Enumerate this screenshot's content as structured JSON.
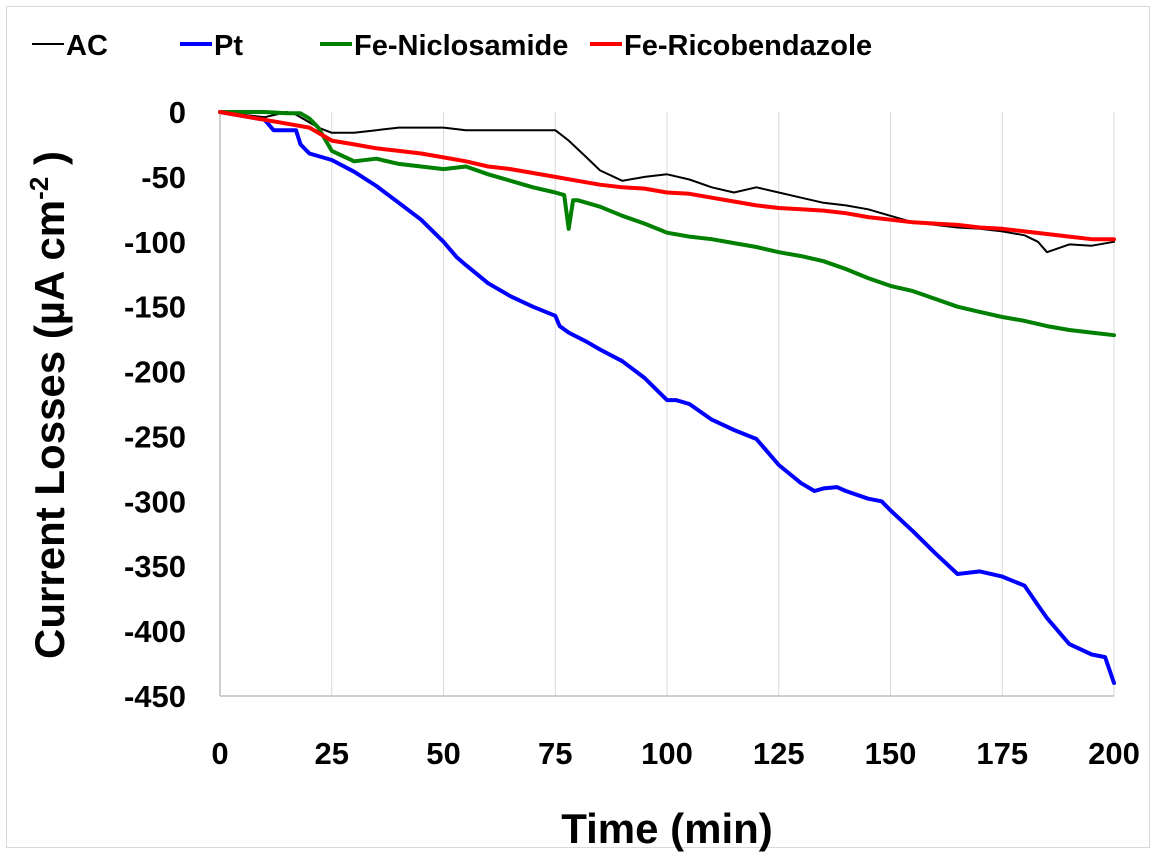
{
  "chart_data": {
    "type": "line",
    "xlabel": "Time (min)",
    "ylabel": "Current Losses (µA cm",
    "ylabel_sup": "-2",
    "ylabel_close": " )",
    "xlim": [
      0,
      200
    ],
    "ylim": [
      -450,
      0
    ],
    "xticks": [
      0,
      25,
      50,
      75,
      100,
      125,
      150,
      175,
      200
    ],
    "yticks": [
      0,
      -50,
      -100,
      -150,
      -200,
      -250,
      -300,
      -350,
      -400,
      -450
    ],
    "grid": "vertical",
    "legend": "top",
    "series": [
      {
        "name": "AC",
        "color": "#000000",
        "width": 2,
        "x": [
          0,
          5,
          10,
          15,
          17,
          19,
          22,
          25,
          30,
          35,
          40,
          45,
          50,
          55,
          60,
          65,
          70,
          75,
          78,
          82,
          85,
          90,
          95,
          100,
          105,
          110,
          115,
          120,
          125,
          130,
          135,
          140,
          145,
          150,
          155,
          160,
          165,
          170,
          175,
          180,
          183,
          185,
          190,
          195,
          200
        ],
        "y": [
          0,
          -2,
          -4,
          0,
          -2,
          -6,
          -12,
          -16,
          -16,
          -14,
          -12,
          -12,
          -12,
          -14,
          -14,
          -14,
          -14,
          -14,
          -22,
          -35,
          -45,
          -53,
          -50,
          -48,
          -52,
          -58,
          -62,
          -58,
          -62,
          -66,
          -70,
          -72,
          -75,
          -80,
          -85,
          -87,
          -89,
          -90,
          -92,
          -95,
          -100,
          -108,
          -102,
          -103,
          -100
        ]
      },
      {
        "name": "Pt",
        "color": "#0000ff",
        "width": 4,
        "x": [
          0,
          5,
          10,
          12,
          15,
          17,
          18,
          20,
          25,
          30,
          35,
          40,
          45,
          50,
          53,
          55,
          60,
          65,
          70,
          75,
          76,
          78,
          82,
          85,
          90,
          95,
          100,
          102,
          105,
          110,
          115,
          120,
          125,
          130,
          133,
          135,
          138,
          140,
          145,
          148,
          150,
          155,
          160,
          165,
          170,
          175,
          180,
          183,
          185,
          190,
          195,
          198,
          200
        ],
        "y": [
          0,
          -3,
          -6,
          -14,
          -14,
          -14,
          -25,
          -32,
          -37,
          -46,
          -57,
          -70,
          -83,
          -100,
          -112,
          -118,
          -132,
          -142,
          -150,
          -157,
          -165,
          -170,
          -177,
          -183,
          -192,
          -205,
          -222,
          -222,
          -225,
          -237,
          -245,
          -252,
          -272,
          -286,
          -292,
          -290,
          -289,
          -292,
          -298,
          -300,
          -307,
          -323,
          -340,
          -356,
          -354,
          -358,
          -365,
          -380,
          -390,
          -410,
          -418,
          -420,
          -440
        ]
      },
      {
        "name": "Fe-Niclosamide",
        "color": "#008000",
        "width": 4,
        "x": [
          0,
          5,
          10,
          15,
          18,
          20,
          22,
          25,
          30,
          35,
          40,
          45,
          50,
          55,
          60,
          65,
          70,
          75,
          77,
          78,
          79,
          80,
          85,
          90,
          95,
          100,
          105,
          110,
          115,
          120,
          125,
          130,
          135,
          140,
          145,
          150,
          155,
          160,
          165,
          170,
          175,
          180,
          185,
          190,
          195,
          200
        ],
        "y": [
          0,
          0,
          0,
          -1,
          -1,
          -5,
          -12,
          -30,
          -38,
          -36,
          -40,
          -42,
          -44,
          -42,
          -48,
          -53,
          -58,
          -62,
          -64,
          -90,
          -68,
          -68,
          -73,
          -80,
          -86,
          -93,
          -96,
          -98,
          -101,
          -104,
          -108,
          -111,
          -115,
          -121,
          -128,
          -134,
          -138,
          -144,
          -150,
          -154,
          -158,
          -161,
          -165,
          -168,
          -170,
          -172
        ]
      },
      {
        "name": "Fe-Ricobendazole",
        "color": "#ff0000",
        "width": 4,
        "x": [
          0,
          5,
          10,
          15,
          20,
          25,
          30,
          35,
          40,
          45,
          50,
          55,
          60,
          65,
          70,
          75,
          80,
          85,
          90,
          95,
          100,
          105,
          110,
          115,
          120,
          125,
          130,
          135,
          140,
          145,
          150,
          155,
          160,
          165,
          170,
          175,
          180,
          185,
          190,
          195,
          200
        ],
        "y": [
          0,
          -3,
          -6,
          -9,
          -12,
          -22,
          -25,
          -28,
          -30,
          -32,
          -35,
          -38,
          -42,
          -44,
          -47,
          -50,
          -53,
          -56,
          -58,
          -59,
          -62,
          -63,
          -66,
          -69,
          -72,
          -74,
          -75,
          -76,
          -78,
          -81,
          -83,
          -85,
          -86,
          -87,
          -89,
          -90,
          -92,
          -94,
          -96,
          -98,
          -98
        ]
      }
    ]
  }
}
